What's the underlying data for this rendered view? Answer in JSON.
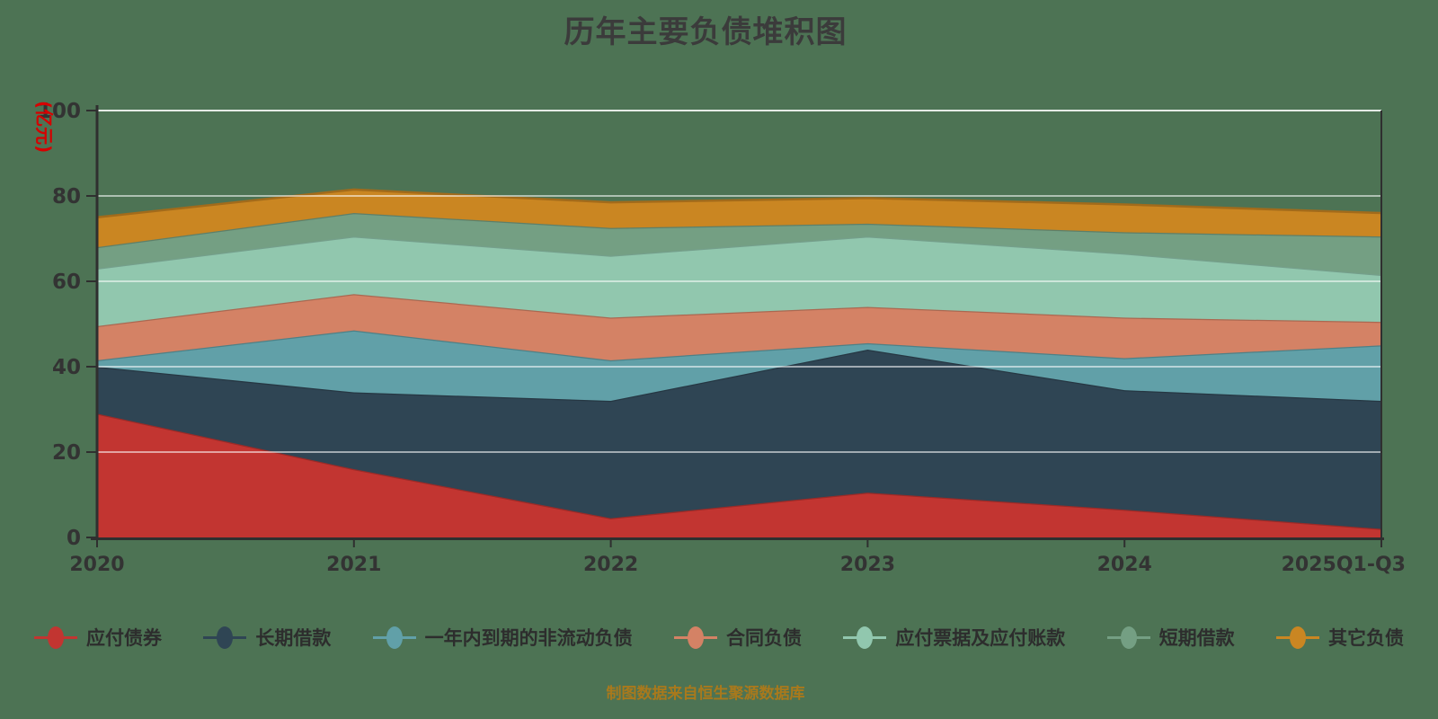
{
  "title": "历年主要负债堆积图",
  "source_note": "制图数据来自恒生聚源数据库",
  "colors": {
    "background": "#4d7354",
    "title_text": "#3b3b3b",
    "axis_text": "#333333",
    "axis_line": "#2f2f2f",
    "gridline": "rgba(255,255,255,0.55)",
    "top_gridline": "rgba(255,255,255,0.85)",
    "unit_text": "#d60000",
    "legend_text": "#2d2d2d",
    "source_text": "#a9791c"
  },
  "y_axis": {
    "unit": "(亿元)",
    "ticks": [
      0,
      20,
      40,
      60,
      80,
      100
    ],
    "max": 100
  },
  "chart_data": {
    "type": "area",
    "stacked": true,
    "title": "历年主要负债堆积图",
    "ylabel": "(亿元)",
    "ylim": [
      0,
      100
    ],
    "grid": true,
    "legend_position": "bottom",
    "categories": [
      "2020",
      "2021",
      "2022",
      "2023",
      "2024",
      "2025Q1-Q3"
    ],
    "series": [
      {
        "name": "应付债券",
        "color": "#c23531",
        "values": [
          29,
          16,
          4.5,
          10.5,
          6.5,
          2
        ]
      },
      {
        "name": "长期借款",
        "color": "#2f4554",
        "values": [
          11,
          18,
          27.5,
          33.5,
          28,
          30
        ]
      },
      {
        "name": "一年内到期的非流动负债",
        "color": "#61a0a8",
        "values": [
          1.5,
          14.5,
          9.5,
          1.5,
          7.5,
          13
        ]
      },
      {
        "name": "合同负债",
        "color": "#d48265",
        "values": [
          8,
          8.5,
          10,
          8.5,
          9.5,
          5.5
        ]
      },
      {
        "name": "应付票据及应付账款",
        "color": "#91c7ae",
        "values": [
          13.5,
          13.5,
          14.5,
          16.5,
          15,
          11
        ]
      },
      {
        "name": "短期借款",
        "color": "#749f83",
        "values": [
          5,
          5.5,
          6.5,
          3,
          5,
          9
        ]
      },
      {
        "name": "其它负债",
        "color": "#ca8622",
        "values": [
          7,
          5.5,
          6,
          6,
          6.5,
          5.5
        ]
      }
    ]
  }
}
